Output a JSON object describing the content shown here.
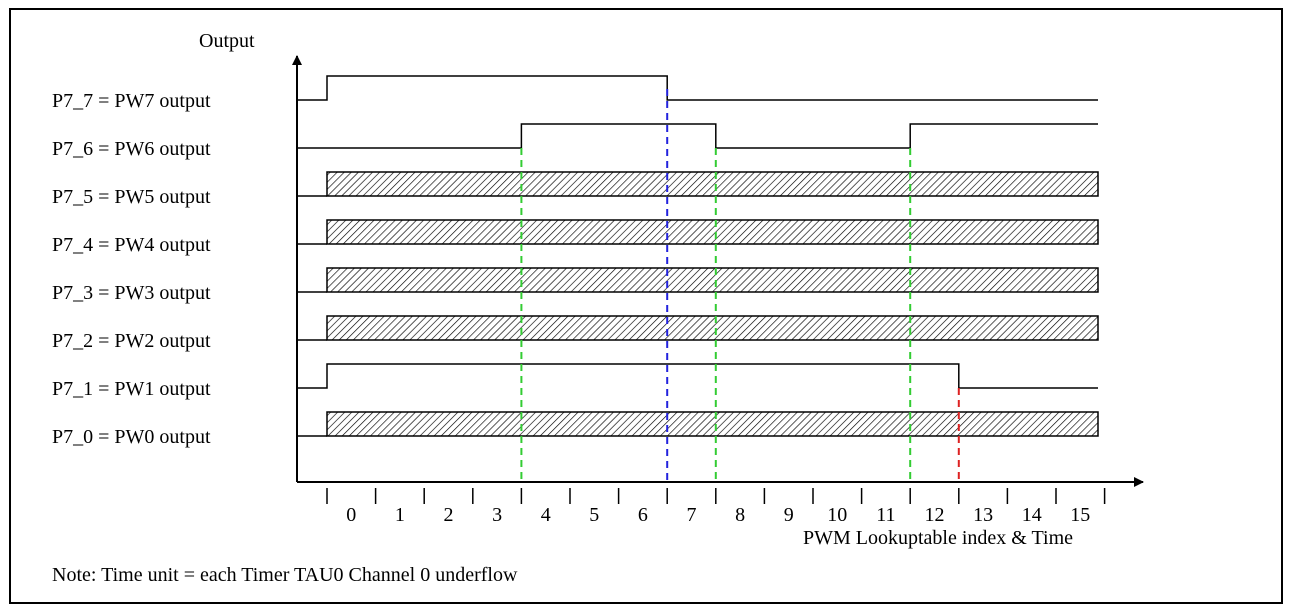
{
  "diagram": {
    "y_axis_label": "Output",
    "x_axis_label": "PWM Lookuptable index & Time",
    "note": "Note: Time unit = each Timer TAU0 Channel 0 underflow",
    "tick_labels": [
      "0",
      "1",
      "2",
      "3",
      "4",
      "5",
      "6",
      "7",
      "8",
      "9",
      "10",
      "11",
      "12",
      "13",
      "14",
      "15"
    ],
    "signals": [
      {
        "label": "P7_7 = PW7 output",
        "kind": "waveform",
        "levels": [
          1,
          1,
          1,
          1,
          1,
          1,
          1,
          0,
          0,
          0,
          0,
          0,
          0,
          0,
          0,
          0
        ]
      },
      {
        "label": "P7_6 = PW6 output",
        "kind": "waveform",
        "start_level": 0,
        "levels": [
          0,
          0,
          0,
          0,
          1,
          1,
          1,
          1,
          0,
          0,
          0,
          0,
          1,
          1,
          1,
          1
        ]
      },
      {
        "label": "P7_5 = PW5 output",
        "kind": "hatched"
      },
      {
        "label": "P7_4 = PW4 output",
        "kind": "hatched"
      },
      {
        "label": "P7_3 = PW3 output",
        "kind": "hatched"
      },
      {
        "label": "P7_2 = PW2 output",
        "kind": "hatched"
      },
      {
        "label": "P7_1 = PW1 output",
        "kind": "waveform",
        "levels": [
          1,
          1,
          1,
          1,
          1,
          1,
          1,
          1,
          1,
          1,
          1,
          1,
          1,
          0,
          0,
          0
        ]
      },
      {
        "label": "P7_0 = PW0 output",
        "kind": "hatched"
      }
    ],
    "markers": [
      {
        "at_index": 4,
        "color": "#33cc33"
      },
      {
        "at_index": 7,
        "color": "#2222dd"
      },
      {
        "at_index": 8,
        "color": "#33cc33"
      },
      {
        "at_index": 12,
        "color": "#33cc33"
      },
      {
        "at_index": 13,
        "color": "#dd2222"
      }
    ]
  }
}
